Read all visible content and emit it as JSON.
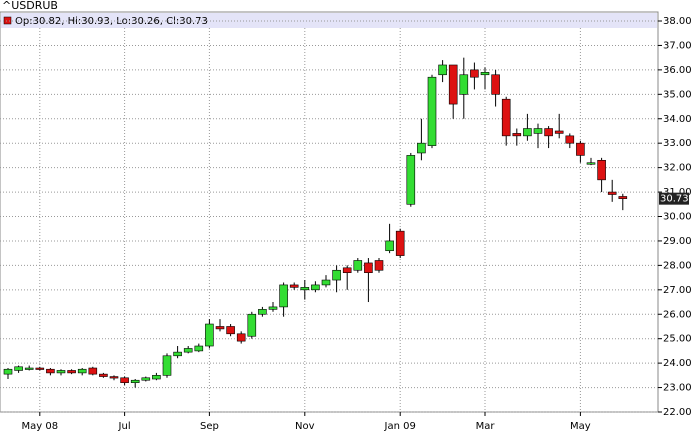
{
  "chart_data": {
    "type": "candlestick",
    "title": "^USDRUB",
    "legend_text": "Op:30.82, Hi:30.93, Lo:30.26, Cl:30.73",
    "categories": [
      null,
      null,
      null,
      "May 08",
      null,
      null,
      null,
      null,
      null,
      null,
      null,
      "Jul",
      null,
      null,
      null,
      null,
      null,
      null,
      null,
      "Sep",
      null,
      null,
      null,
      null,
      null,
      null,
      null,
      null,
      "Nov",
      null,
      null,
      null,
      null,
      null,
      null,
      null,
      null,
      "Jan 09",
      null,
      null,
      null,
      null,
      null,
      null,
      null,
      "Mar",
      null,
      null,
      null,
      null,
      null,
      null,
      null,
      null,
      "May",
      null,
      null,
      null,
      null
    ],
    "open": [
      23.55,
      23.7,
      23.8,
      23.8,
      23.75,
      23.6,
      23.7,
      23.6,
      23.8,
      23.55,
      23.45,
      23.4,
      23.2,
      23.3,
      23.35,
      23.5,
      24.3,
      24.45,
      24.5,
      24.7,
      25.5,
      25.5,
      25.2,
      25.1,
      26.0,
      26.2,
      26.3,
      27.2,
      27.0,
      27.0,
      27.2,
      27.4,
      27.9,
      27.8,
      28.1,
      28.2,
      28.6,
      29.4,
      30.5,
      32.6,
      32.9,
      35.8,
      36.2,
      35.0,
      36.0,
      35.8,
      35.8,
      34.8,
      33.4,
      33.3,
      33.4,
      33.6,
      33.5,
      33.3,
      33.0,
      32.2,
      32.3,
      31.0,
      30.82
    ],
    "high": [
      23.8,
      23.9,
      23.9,
      23.85,
      23.8,
      23.75,
      23.75,
      23.8,
      23.85,
      23.6,
      23.5,
      23.45,
      23.35,
      23.45,
      23.6,
      24.4,
      24.7,
      24.7,
      24.8,
      25.8,
      25.8,
      25.6,
      25.3,
      26.1,
      26.3,
      26.5,
      27.3,
      27.3,
      27.4,
      27.35,
      27.6,
      28.0,
      28.0,
      28.3,
      28.3,
      28.3,
      29.7,
      29.5,
      32.6,
      34.0,
      35.8,
      36.4,
      36.2,
      36.5,
      36.3,
      36.1,
      36.0,
      34.9,
      33.6,
      34.2,
      33.8,
      33.7,
      34.2,
      33.4,
      33.1,
      32.4,
      32.4,
      31.5,
      30.93
    ],
    "low": [
      23.35,
      23.6,
      23.7,
      23.7,
      23.5,
      23.5,
      23.55,
      23.5,
      23.5,
      23.4,
      23.3,
      23.1,
      23.0,
      23.25,
      23.3,
      23.4,
      24.2,
      24.4,
      24.45,
      24.6,
      25.3,
      25.1,
      24.8,
      25.0,
      25.9,
      26.1,
      25.9,
      27.0,
      26.6,
      26.9,
      27.1,
      26.9,
      27.0,
      27.7,
      26.5,
      27.7,
      28.5,
      28.3,
      30.4,
      32.3,
      32.8,
      35.5,
      34.0,
      34.0,
      35.2,
      35.2,
      34.5,
      32.9,
      32.9,
      33.1,
      32.8,
      32.8,
      33.2,
      32.8,
      32.2,
      32.1,
      31.0,
      30.6,
      30.26
    ],
    "close": [
      23.75,
      23.85,
      23.8,
      23.75,
      23.6,
      23.7,
      23.6,
      23.75,
      23.55,
      23.45,
      23.4,
      23.2,
      23.3,
      23.4,
      23.5,
      24.3,
      24.45,
      24.6,
      24.7,
      25.6,
      25.4,
      25.2,
      24.9,
      26.0,
      26.2,
      26.3,
      27.2,
      27.1,
      27.1,
      27.2,
      27.4,
      27.8,
      27.7,
      28.2,
      27.7,
      27.8,
      29.0,
      28.4,
      32.5,
      33.0,
      35.7,
      36.2,
      34.6,
      35.8,
      35.7,
      35.9,
      35.0,
      33.3,
      33.3,
      33.6,
      33.6,
      33.3,
      33.4,
      33.0,
      32.5,
      32.2,
      31.5,
      30.9,
      30.73
    ],
    "up_color": "#33dd33",
    "down_color": "#dd1111",
    "last_price": 30.73,
    "ylim": [
      22,
      38
    ],
    "yticks": [
      {
        "value": 22,
        "label": "22.00"
      },
      {
        "value": 23,
        "label": "23.00"
      },
      {
        "value": 24,
        "label": "24.00"
      },
      {
        "value": 25,
        "label": "25.00"
      },
      {
        "value": 26,
        "label": "26.00"
      },
      {
        "value": 27,
        "label": "27.00"
      },
      {
        "value": 28,
        "label": "28.00"
      },
      {
        "value": 29,
        "label": "29.00"
      },
      {
        "value": 30,
        "label": "30.00"
      },
      {
        "value": 31,
        "label": "31.00"
      },
      {
        "value": 32,
        "label": "32.00"
      },
      {
        "value": 33,
        "label": "33.00"
      },
      {
        "value": 34,
        "label": "34.00"
      },
      {
        "value": 35,
        "label": "35.00"
      },
      {
        "value": 36,
        "label": "36.00"
      },
      {
        "value": 37,
        "label": "37.00"
      },
      {
        "value": 38,
        "label": "38.00"
      }
    ],
    "grid": true
  }
}
